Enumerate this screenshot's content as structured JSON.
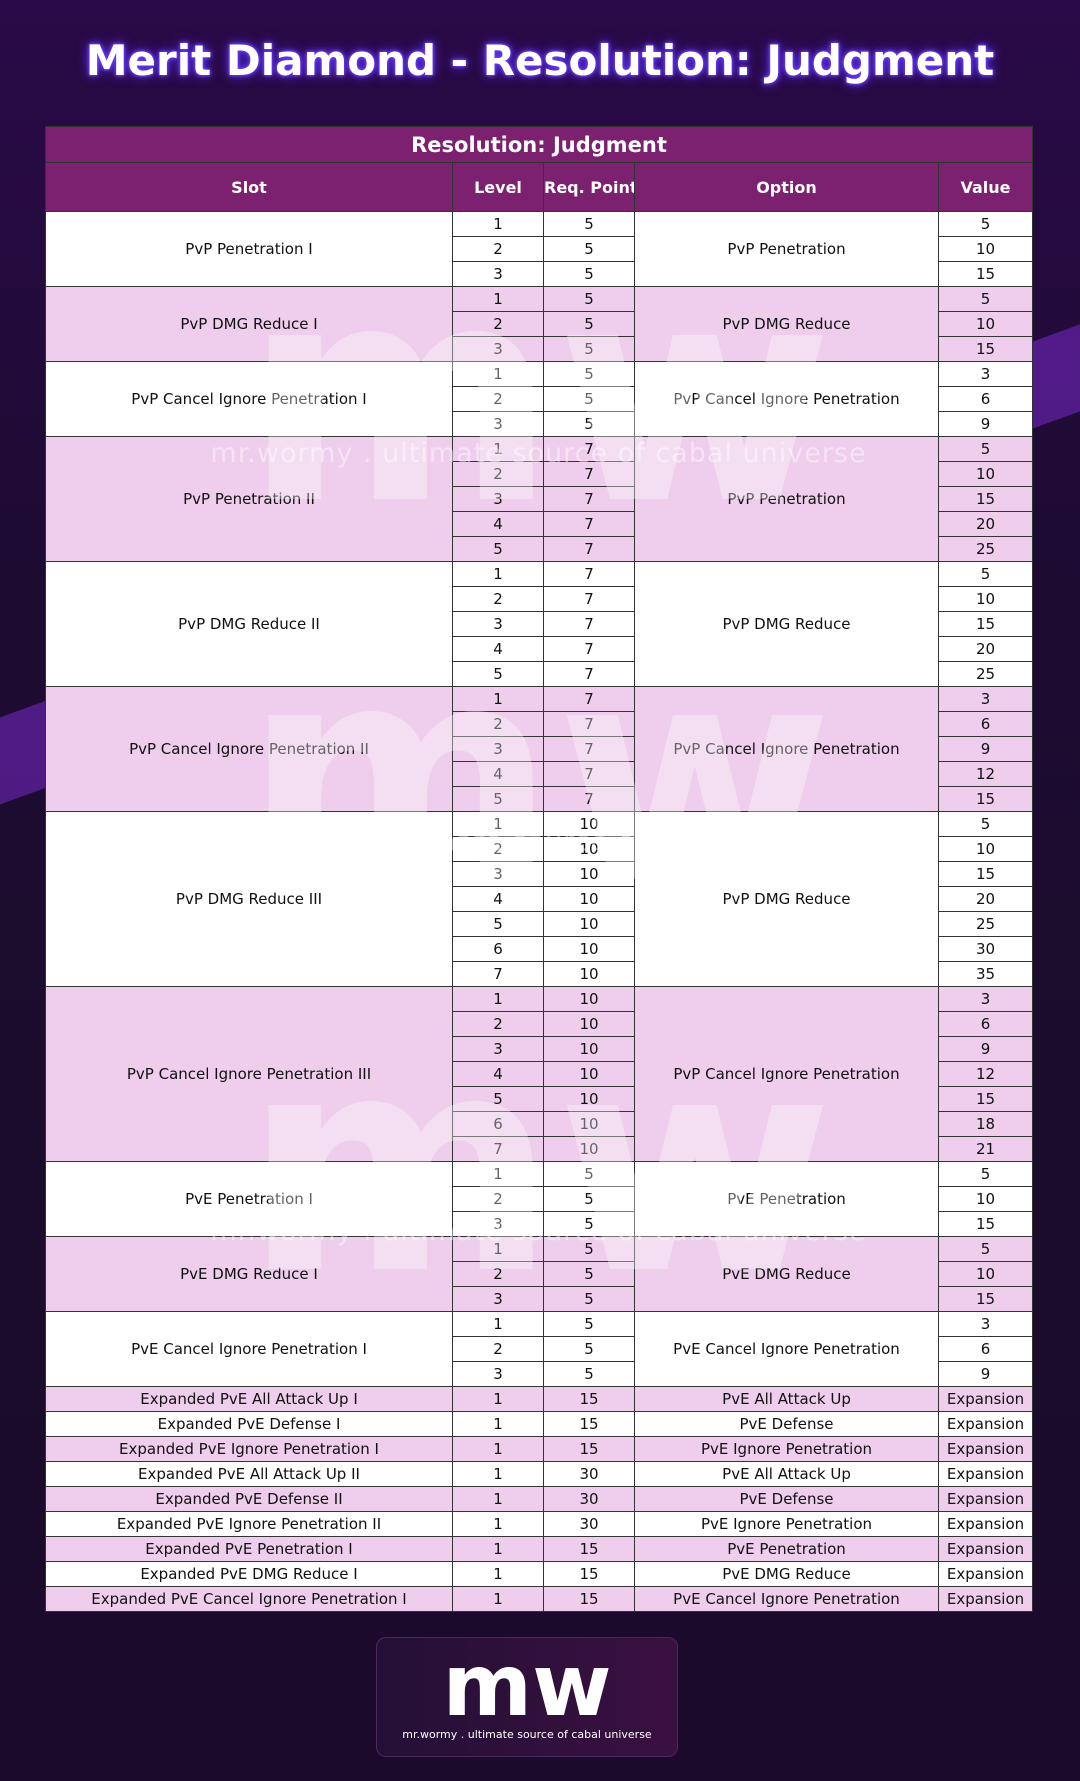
{
  "header": {
    "title": "Merit Diamond - Resolution: Judgment"
  },
  "table": {
    "title": "Resolution: Judgment",
    "columns": [
      "Slot",
      "Level",
      "Req. Point",
      "Option",
      "Value"
    ],
    "groups": [
      {
        "slot": "PvP Penetration I",
        "option": "PvP Penetration",
        "levels": [
          1,
          2,
          3
        ],
        "req_points": [
          5,
          5,
          5
        ],
        "values": [
          5,
          10,
          15
        ]
      },
      {
        "slot": "PvP DMG Reduce I",
        "option": "PvP DMG Reduce",
        "levels": [
          1,
          2,
          3
        ],
        "req_points": [
          5,
          5,
          5
        ],
        "values": [
          5,
          10,
          15
        ]
      },
      {
        "slot": "PvP Cancel Ignore Penetration I",
        "option": "PvP Cancel Ignore Penetration",
        "levels": [
          1,
          2,
          3
        ],
        "req_points": [
          5,
          5,
          5
        ],
        "values": [
          3,
          6,
          9
        ]
      },
      {
        "slot": "PvP Penetration II",
        "option": "PvP Penetration",
        "levels": [
          1,
          2,
          3,
          4,
          5
        ],
        "req_points": [
          7,
          7,
          7,
          7,
          7
        ],
        "values": [
          5,
          10,
          15,
          20,
          25
        ]
      },
      {
        "slot": "PvP DMG Reduce II",
        "option": "PvP DMG Reduce",
        "levels": [
          1,
          2,
          3,
          4,
          5
        ],
        "req_points": [
          7,
          7,
          7,
          7,
          7
        ],
        "values": [
          5,
          10,
          15,
          20,
          25
        ]
      },
      {
        "slot": "PvP Cancel Ignore Penetration II",
        "option": "PvP Cancel Ignore Penetration",
        "levels": [
          1,
          2,
          3,
          4,
          5
        ],
        "req_points": [
          7,
          7,
          7,
          7,
          7
        ],
        "values": [
          3,
          6,
          9,
          12,
          15
        ]
      },
      {
        "slot": "PvP DMG Reduce III",
        "option": "PvP DMG Reduce",
        "levels": [
          1,
          2,
          3,
          4,
          5,
          6,
          7
        ],
        "req_points": [
          10,
          10,
          10,
          10,
          10,
          10,
          10
        ],
        "values": [
          5,
          10,
          15,
          20,
          25,
          30,
          35
        ]
      },
      {
        "slot": "PvP Cancel Ignore Penetration III",
        "option": "PvP Cancel Ignore Penetration",
        "levels": [
          1,
          2,
          3,
          4,
          5,
          6,
          7
        ],
        "req_points": [
          10,
          10,
          10,
          10,
          10,
          10,
          10
        ],
        "values": [
          3,
          6,
          9,
          12,
          15,
          18,
          21
        ]
      },
      {
        "slot": "PvE Penetration I",
        "option": "PvE Penetration",
        "levels": [
          1,
          2,
          3
        ],
        "req_points": [
          5,
          5,
          5
        ],
        "values": [
          5,
          10,
          15
        ]
      },
      {
        "slot": "PvE DMG Reduce I",
        "option": "PvE DMG Reduce",
        "levels": [
          1,
          2,
          3
        ],
        "req_points": [
          5,
          5,
          5
        ],
        "values": [
          5,
          10,
          15
        ]
      },
      {
        "slot": "PvE Cancel Ignore Penetration I",
        "option": "PvE Cancel Ignore Penetration",
        "levels": [
          1,
          2,
          3
        ],
        "req_points": [
          5,
          5,
          5
        ],
        "values": [
          3,
          6,
          9
        ]
      }
    ],
    "expanded_rows": [
      [
        "Expanded PvE All Attack Up I",
        1,
        15,
        "PvE All Attack Up",
        "Expansion"
      ],
      [
        "Expanded PvE Defense I",
        1,
        15,
        "PvE Defense",
        "Expansion"
      ],
      [
        "Expanded PvE Ignore Penetration I",
        1,
        15,
        "PvE Ignore Penetration",
        "Expansion"
      ],
      [
        "Expanded PvE All Attack Up II",
        1,
        30,
        "PvE All Attack Up",
        "Expansion"
      ],
      [
        "Expanded PvE Defense II",
        1,
        30,
        "PvE Defense",
        "Expansion"
      ],
      [
        "Expanded PvE Ignore Penetration II",
        1,
        30,
        "PvE Ignore Penetration",
        "Expansion"
      ],
      [
        "Expanded PvE Penetration I",
        1,
        15,
        "PvE Penetration",
        "Expansion"
      ],
      [
        "Expanded PvE DMG Reduce I",
        1,
        15,
        "PvE DMG Reduce",
        "Expansion"
      ],
      [
        "Expanded PvE Cancel Ignore Penetration I",
        1,
        15,
        "PvE Cancel Ignore Penetration",
        "Expansion"
      ]
    ]
  },
  "watermark": {
    "logo": "mw",
    "tagline": "mr.wormy . ultimate source of cabal universe"
  }
}
